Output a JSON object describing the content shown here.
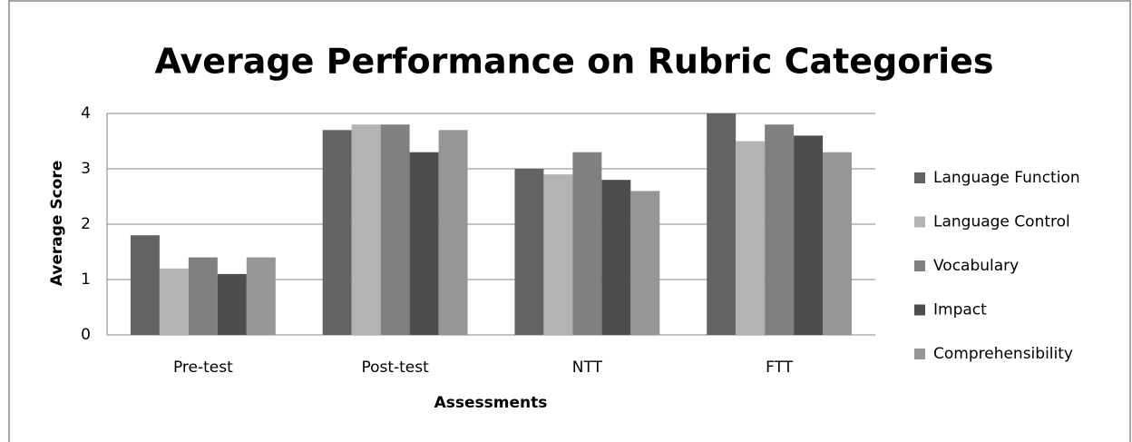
{
  "chart_data": {
    "type": "bar",
    "title": "Average Performance on Rubric Categories",
    "x_label": "Assessments",
    "y_label": "Average Score",
    "categories": [
      "Pre-test",
      "Post-test",
      "NTT",
      "FTT"
    ],
    "series": [
      {
        "name": "Language Function",
        "color": "#636363",
        "values": [
          1.8,
          3.7,
          3.0,
          4.0
        ]
      },
      {
        "name": "Language Control",
        "color": "#b3b3b3",
        "values": [
          1.2,
          3.8,
          2.9,
          3.5
        ]
      },
      {
        "name": "Vocabulary",
        "color": "#808080",
        "values": [
          1.4,
          3.8,
          3.3,
          3.8
        ]
      },
      {
        "name": "Impact",
        "color": "#4d4d4d",
        "values": [
          1.1,
          3.3,
          2.8,
          3.6
        ]
      },
      {
        "name": "Comprehensibility",
        "color": "#969696",
        "values": [
          1.4,
          3.7,
          2.6,
          3.3
        ]
      }
    ],
    "ylim": [
      0,
      4
    ],
    "yticks": [
      0,
      1,
      2,
      3,
      4
    ],
    "grid": true,
    "legend": "right"
  }
}
